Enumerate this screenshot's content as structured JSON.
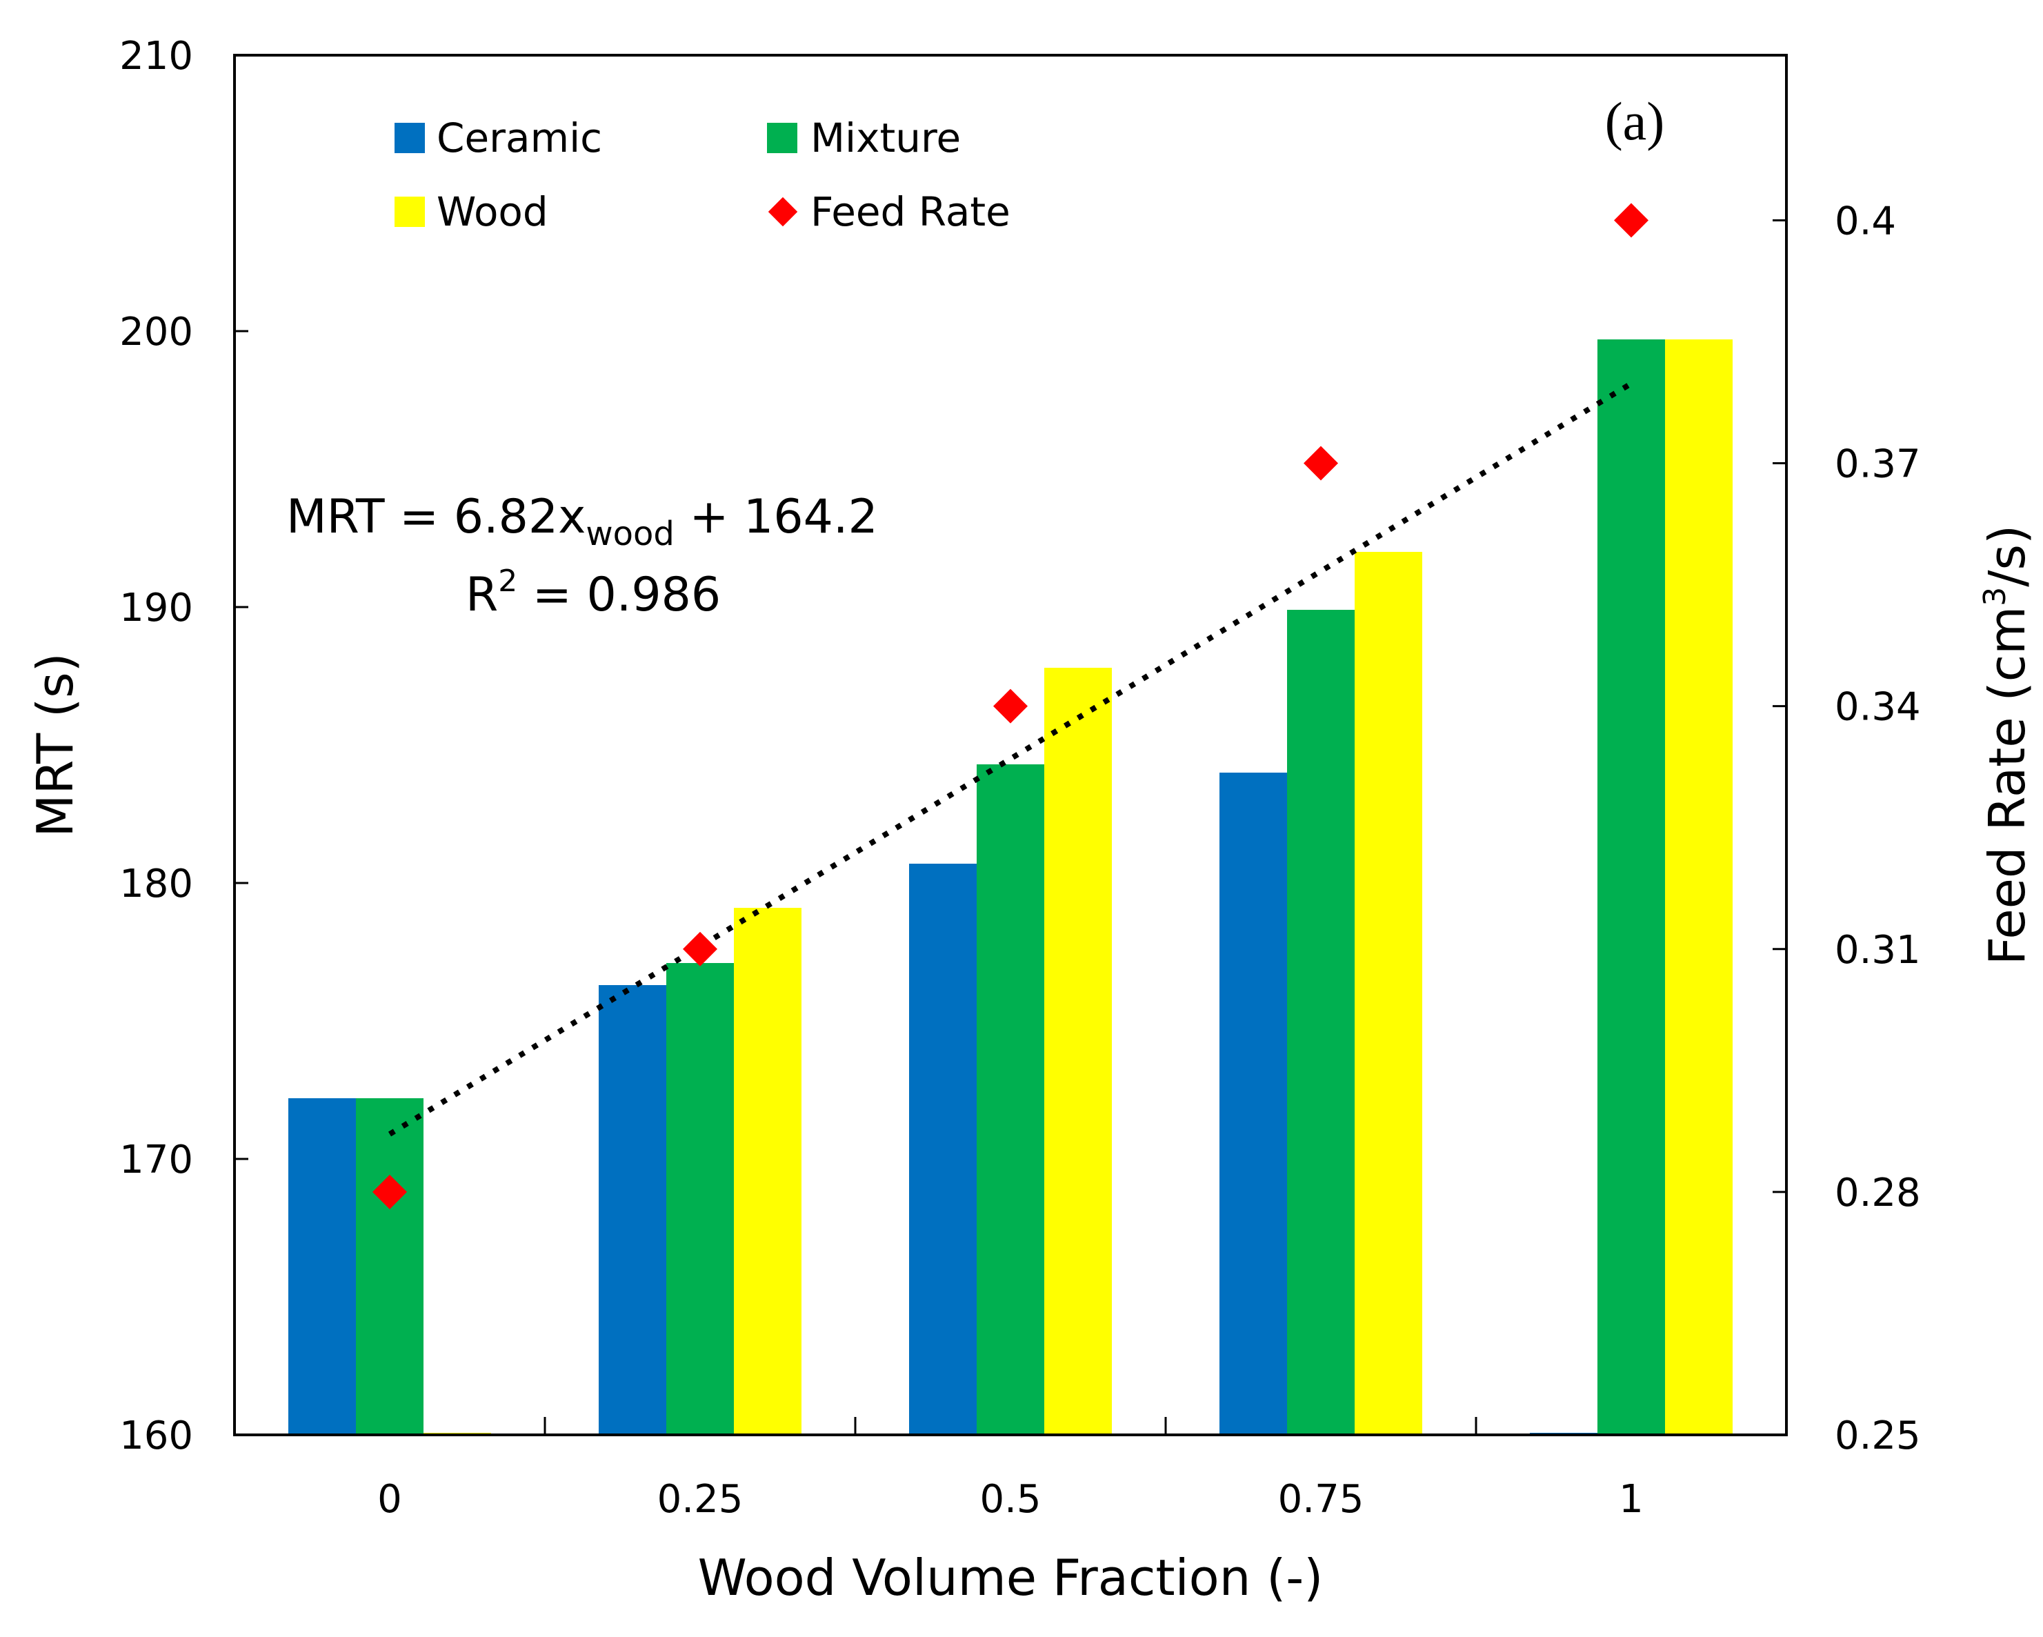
{
  "chart_data": {
    "type": "bar",
    "categories": [
      "0",
      "0.25",
      "0.5",
      "0.75",
      "1"
    ],
    "series": [
      {
        "name": "Ceramic",
        "color": "#0070c0",
        "values": [
          172.2,
          176.3,
          180.7,
          184.0,
          160.0
        ]
      },
      {
        "name": "Mixture",
        "color": "#00b050",
        "values": [
          172.2,
          177.1,
          184.3,
          189.9,
          199.7
        ]
      },
      {
        "name": "Wood",
        "color": "#ffff00",
        "values": [
          160.0,
          179.1,
          187.8,
          192.0,
          199.7
        ]
      }
    ],
    "feed_rate": {
      "name": "Feed Rate",
      "color": "#ff0000",
      "values": [
        0.28,
        0.31,
        0.34,
        0.37,
        0.4
      ]
    },
    "trendline": {
      "style": "dotted",
      "color": "#000000",
      "start": 170.9,
      "end": 198.1
    },
    "equation_lines": {
      "main": "MRT = 6.82x",
      "sub": "wood",
      "tail": " + 164.2",
      "r2_lhs": "R",
      "r2_sup": "2",
      "r2_rhs": " = 0.986"
    },
    "panel_label": "(a)",
    "xlabel": "Wood Volume Fraction (-)",
    "ylabel": "MRT (s)",
    "y2label_pre": "Feed Rate (cm",
    "y2label_sup": "3",
    "y2label_post": "/s)",
    "ylim": [
      160,
      210
    ],
    "yticks": [
      "160",
      "170",
      "180",
      "190",
      "200",
      "210"
    ],
    "y2lim": [
      0.25,
      0.4204
    ],
    "y2ticks": [
      "0.25",
      "0.28",
      "0.31",
      "0.34",
      "0.37",
      "0.4"
    ],
    "legend_position": "top-left",
    "grid": false
  }
}
